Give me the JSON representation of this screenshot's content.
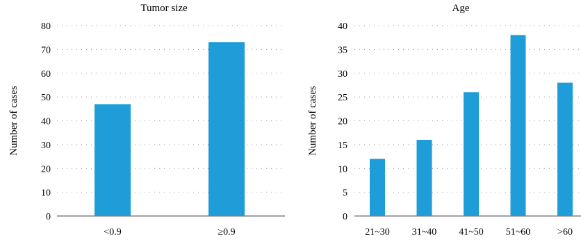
{
  "chart_data": [
    {
      "type": "bar",
      "title": "Tumor size",
      "xlabel": "",
      "ylabel": "Number of cases",
      "categories": [
        "<0.9",
        "≥0.9"
      ],
      "values": [
        47,
        73
      ],
      "ylim": [
        0,
        80
      ],
      "yticks": [
        0,
        10,
        20,
        30,
        40,
        50,
        60,
        70,
        80
      ],
      "grid": true,
      "bar_color": "#1f9dd9"
    },
    {
      "type": "bar",
      "title": "Age",
      "xlabel": "",
      "ylabel": "Number of cases",
      "categories": [
        "21~30",
        "31~40",
        "41~50",
        "51~60",
        ">60"
      ],
      "values": [
        12,
        16,
        26,
        38,
        28
      ],
      "ylim": [
        0,
        40
      ],
      "yticks": [
        0,
        5,
        10,
        15,
        20,
        25,
        30,
        35,
        40
      ],
      "grid": true,
      "bar_color": "#1f9dd9"
    }
  ]
}
